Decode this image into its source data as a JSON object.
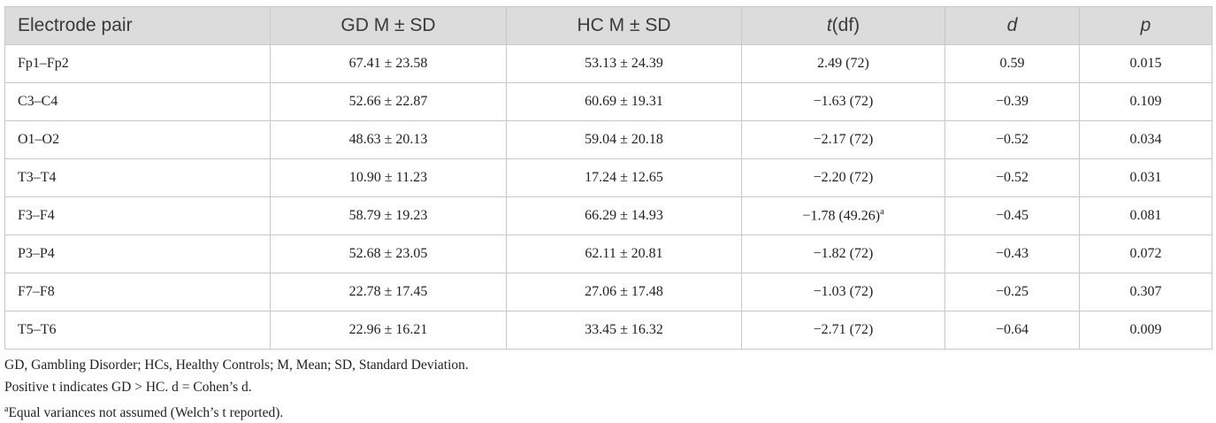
{
  "table": {
    "headers": [
      "Electrode pair",
      "GD M ± SD",
      "HC M ± SD",
      {
        "italic": "t",
        "text": "(df)"
      },
      "d",
      "p"
    ],
    "rows": [
      [
        "Fp1–Fp2",
        "67.41 ± 23.58",
        "53.13 ± 24.39",
        "2.49 (72)",
        "0.59",
        "0.015"
      ],
      [
        "C3–C4",
        "52.66 ± 22.87",
        "60.69 ± 19.31",
        "−1.63 (72)",
        "−0.39",
        "0.109"
      ],
      [
        "O1–O2",
        "48.63 ± 20.13",
        "59.04 ± 20.18",
        "−2.17 (72)",
        "−0.52",
        "0.034"
      ],
      [
        "T3–T4",
        "10.90 ± 11.23",
        "17.24 ± 12.65",
        "−2.20 (72)",
        "−0.52",
        "0.031"
      ],
      [
        "F3–F4",
        "58.79 ± 19.23",
        "66.29 ± 14.93",
        {
          "text": "−1.78 (49.26)",
          "note": "a"
        },
        "−0.45",
        "0.081"
      ],
      [
        "P3–P4",
        "52.68 ± 23.05",
        "62.11 ± 20.81",
        "−1.82 (72)",
        "−0.43",
        "0.072"
      ],
      [
        "F7–F8",
        "22.78 ± 17.45",
        "27.06 ± 17.48",
        "−1.03 (72)",
        "−0.25",
        "0.307"
      ],
      [
        "T5–T6",
        "22.96 ± 16.21",
        "33.45 ± 16.32",
        "−2.71 (72)",
        "−0.64",
        "0.009"
      ]
    ],
    "notes": [
      "GD, Gambling Disorder; HCs, Healthy Controls; M, Mean; SD, Standard Deviation.",
      "Positive t indicates GD > HC. d = Cohen’s d.",
      {
        "mark": "a",
        "text": "Equal variances not assumed (Welch’s t reported)."
      }
    ]
  }
}
